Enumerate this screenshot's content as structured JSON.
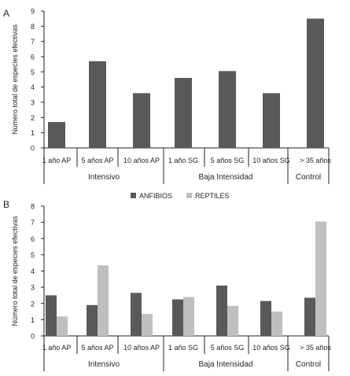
{
  "chart_data": [
    {
      "panel": "A",
      "type": "bar",
      "ylabel": "Número total de especies efectivas",
      "ylim": [
        0,
        9
      ],
      "yticks": [
        "0",
        "1",
        "2",
        "3",
        "4",
        "5",
        "6",
        "7",
        "8",
        "9"
      ],
      "categories": [
        "1 año AP",
        "5 años AP",
        "10 años AP",
        "1 año SG",
        "5 años SG",
        "10 años SG",
        "> 35 años"
      ],
      "groups": [
        "Intensivo",
        "Baja Intensidad",
        "Control"
      ],
      "series": [
        {
          "values": [
            1.7,
            5.7,
            3.6,
            4.6,
            5.05,
            3.6,
            8.5
          ],
          "color": "#595959"
        }
      ],
      "grid": false
    },
    {
      "panel": "B",
      "type": "bar",
      "ylabel": "Número total de especies efectivas",
      "ylim": [
        0,
        8
      ],
      "yticks": [
        "0",
        "1",
        "2",
        "3",
        "4",
        "5",
        "6",
        "7",
        "8"
      ],
      "categories": [
        "1 año AP",
        "5 años AP",
        "10 años AP",
        "1 año SG",
        "5 años SG",
        "10 años SG",
        "> 35 años"
      ],
      "groups": [
        "Intensivo",
        "Baja Intensidad",
        "Control"
      ],
      "legend": "top",
      "series": [
        {
          "name": "ANFIBIOS",
          "values": [
            2.5,
            1.9,
            2.65,
            2.25,
            3.1,
            2.15,
            2.35
          ],
          "color": "#595959"
        },
        {
          "name": "REPTILES",
          "values": [
            1.2,
            4.35,
            1.35,
            2.4,
            1.85,
            1.5,
            7.05
          ],
          "color": "#bfbfbf"
        }
      ],
      "grid": false
    }
  ]
}
